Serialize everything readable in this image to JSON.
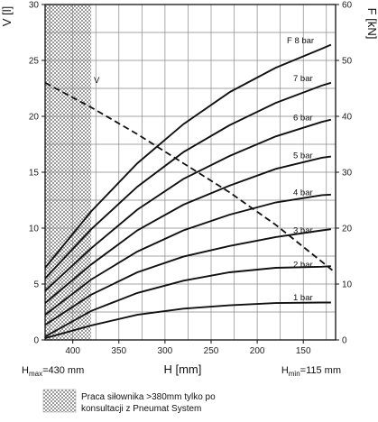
{
  "chart_data": {
    "type": "line",
    "x_axis": {
      "label": "H [mm]",
      "reversed": true,
      "range": [
        430,
        115
      ],
      "ticks": [
        400,
        350,
        300,
        250,
        200,
        150
      ]
    },
    "y_axis_left": {
      "label": "V [l]",
      "range": [
        0,
        30
      ],
      "ticks": [
        0,
        5,
        10,
        15,
        20,
        25,
        30
      ]
    },
    "y_axis_right": {
      "label": "F [kN]",
      "range": [
        0,
        60
      ],
      "ticks": [
        0,
        10,
        20,
        30,
        40,
        50,
        60
      ]
    },
    "grid": true,
    "x_min_label": {
      "prefix": "H",
      "sub": "max",
      "value": "=430 mm"
    },
    "x_max_label": {
      "prefix": "H",
      "sub": "min",
      "value": "=115 mm"
    },
    "shaded_region": {
      "x_from": 430,
      "x_to": 380,
      "pattern": "dotted"
    },
    "series": [
      {
        "name": "1 bar",
        "axis": "F",
        "x": [
          430,
          380,
          330,
          280,
          230,
          180,
          130,
          120
        ],
        "y": [
          0.3,
          2.6,
          4.5,
          5.6,
          6.2,
          6.6,
          6.7,
          6.7
        ]
      },
      {
        "name": "2 bar",
        "axis": "F",
        "x": [
          430,
          380,
          330,
          280,
          230,
          180,
          130,
          120
        ],
        "y": [
          0.6,
          5.2,
          8.4,
          10.6,
          12.1,
          12.9,
          13.1,
          13.2
        ]
      },
      {
        "name": "3 bar",
        "axis": "F",
        "x": [
          430,
          380,
          330,
          280,
          230,
          180,
          130,
          120
        ],
        "y": [
          2.7,
          8.1,
          12.1,
          14.9,
          16.8,
          18.4,
          19.6,
          19.8
        ]
      },
      {
        "name": "4 bar",
        "axis": "F",
        "x": [
          430,
          380,
          330,
          280,
          230,
          180,
          130,
          120
        ],
        "y": [
          4.5,
          10.8,
          15.8,
          19.6,
          22.4,
          24.6,
          25.9,
          26.0
        ]
      },
      {
        "name": "5 bar",
        "axis": "F",
        "x": [
          430,
          380,
          330,
          280,
          230,
          180,
          130,
          120
        ],
        "y": [
          6.6,
          13.5,
          19.6,
          24.2,
          27.6,
          30.6,
          32.6,
          32.8
        ]
      },
      {
        "name": "6 bar",
        "axis": "F",
        "x": [
          430,
          380,
          330,
          280,
          230,
          180,
          130,
          120
        ],
        "y": [
          8.8,
          16.4,
          23.3,
          28.8,
          32.9,
          36.4,
          39.0,
          39.4
        ]
      },
      {
        "name": "7 bar",
        "axis": "F",
        "x": [
          430,
          380,
          330,
          280,
          230,
          180,
          130,
          120
        ],
        "y": [
          11.0,
          19.8,
          27.4,
          33.6,
          38.4,
          42.4,
          45.5,
          46.0
        ]
      },
      {
        "name": "F 8 bar",
        "axis": "F",
        "x": [
          430,
          380,
          330,
          280,
          230,
          180,
          130,
          120
        ],
        "y": [
          12.9,
          23.0,
          31.6,
          38.6,
          44.3,
          48.7,
          52.1,
          52.8
        ]
      },
      {
        "name": "V",
        "axis": "V",
        "dashed": true,
        "x": [
          430,
          380,
          330,
          280,
          230,
          180,
          130,
          118
        ],
        "y": [
          23.0,
          20.8,
          18.4,
          15.8,
          13.2,
          10.3,
          7.0,
          6.2
        ]
      }
    ]
  },
  "legend": {
    "lines": [
      "Praca siłownika >380mm tylko po",
      "konsultacji z Pneumat System"
    ]
  }
}
